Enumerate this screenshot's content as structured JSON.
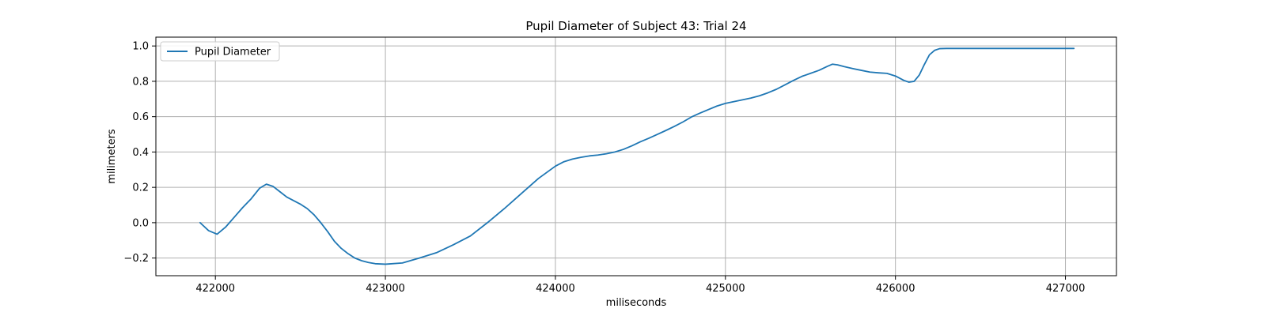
{
  "chart_data": {
    "type": "line",
    "title": "Pupil Diameter of Subject 43: Trial 24",
    "xlabel": "miliseconds",
    "ylabel": "milimeters",
    "xlim": [
      421650,
      427300
    ],
    "ylim": [
      -0.3,
      1.05
    ],
    "xticks": [
      422000,
      423000,
      424000,
      425000,
      426000,
      427000
    ],
    "yticks": [
      -0.2,
      0.0,
      0.2,
      0.4,
      0.6,
      0.8,
      1.0
    ],
    "xtick_labels": [
      "422000",
      "423000",
      "424000",
      "425000",
      "426000",
      "427000"
    ],
    "ytick_labels": [
      "−0.2",
      "0.0",
      "0.2",
      "0.4",
      "0.6",
      "0.8",
      "1.0"
    ],
    "grid": true,
    "legend": {
      "position": "top-left",
      "entries": [
        "Pupil Diameter"
      ]
    },
    "series": [
      {
        "name": "Pupil Diameter",
        "color": "#1f77b4",
        "x": [
          421910,
          421960,
          422010,
          422060,
          422110,
          422160,
          422210,
          422260,
          422300,
          422340,
          422380,
          422420,
          422460,
          422500,
          422540,
          422580,
          422620,
          422660,
          422700,
          422740,
          422780,
          422820,
          422860,
          422900,
          422940,
          423000,
          423100,
          423200,
          423300,
          423400,
          423500,
          423600,
          423700,
          423800,
          423900,
          424000,
          424050,
          424100,
          424150,
          424200,
          424250,
          424300,
          424350,
          424400,
          424450,
          424500,
          424550,
          424600,
          424650,
          424700,
          424750,
          424800,
          424850,
          424900,
          424950,
          425000,
          425050,
          425100,
          425150,
          425200,
          425250,
          425300,
          425350,
          425400,
          425450,
          425500,
          425550,
          425600,
          425630,
          425660,
          425700,
          425750,
          425800,
          425850,
          425900,
          425950,
          426000,
          426050,
          426080,
          426110,
          426140,
          426170,
          426200,
          426230,
          426260,
          426300,
          426400,
          426500,
          426600,
          426700,
          426800,
          426900,
          427000,
          427050
        ],
        "y": [
          0.0,
          -0.045,
          -0.065,
          -0.025,
          0.03,
          0.085,
          0.135,
          0.195,
          0.218,
          0.205,
          0.175,
          0.145,
          0.125,
          0.105,
          0.08,
          0.045,
          0.0,
          -0.05,
          -0.105,
          -0.145,
          -0.175,
          -0.2,
          -0.215,
          -0.225,
          -0.232,
          -0.235,
          -0.228,
          -0.2,
          -0.17,
          -0.125,
          -0.075,
          0.0,
          0.08,
          0.165,
          0.25,
          0.32,
          0.345,
          0.36,
          0.37,
          0.378,
          0.383,
          0.39,
          0.4,
          0.415,
          0.435,
          0.458,
          0.478,
          0.5,
          0.522,
          0.545,
          0.57,
          0.598,
          0.62,
          0.64,
          0.66,
          0.675,
          0.685,
          0.695,
          0.705,
          0.718,
          0.735,
          0.755,
          0.78,
          0.805,
          0.828,
          0.845,
          0.862,
          0.885,
          0.897,
          0.893,
          0.883,
          0.872,
          0.862,
          0.852,
          0.848,
          0.845,
          0.83,
          0.805,
          0.795,
          0.8,
          0.835,
          0.895,
          0.95,
          0.975,
          0.985,
          0.986,
          0.986,
          0.986,
          0.986,
          0.986,
          0.986,
          0.986,
          0.986,
          0.986
        ]
      }
    ]
  }
}
